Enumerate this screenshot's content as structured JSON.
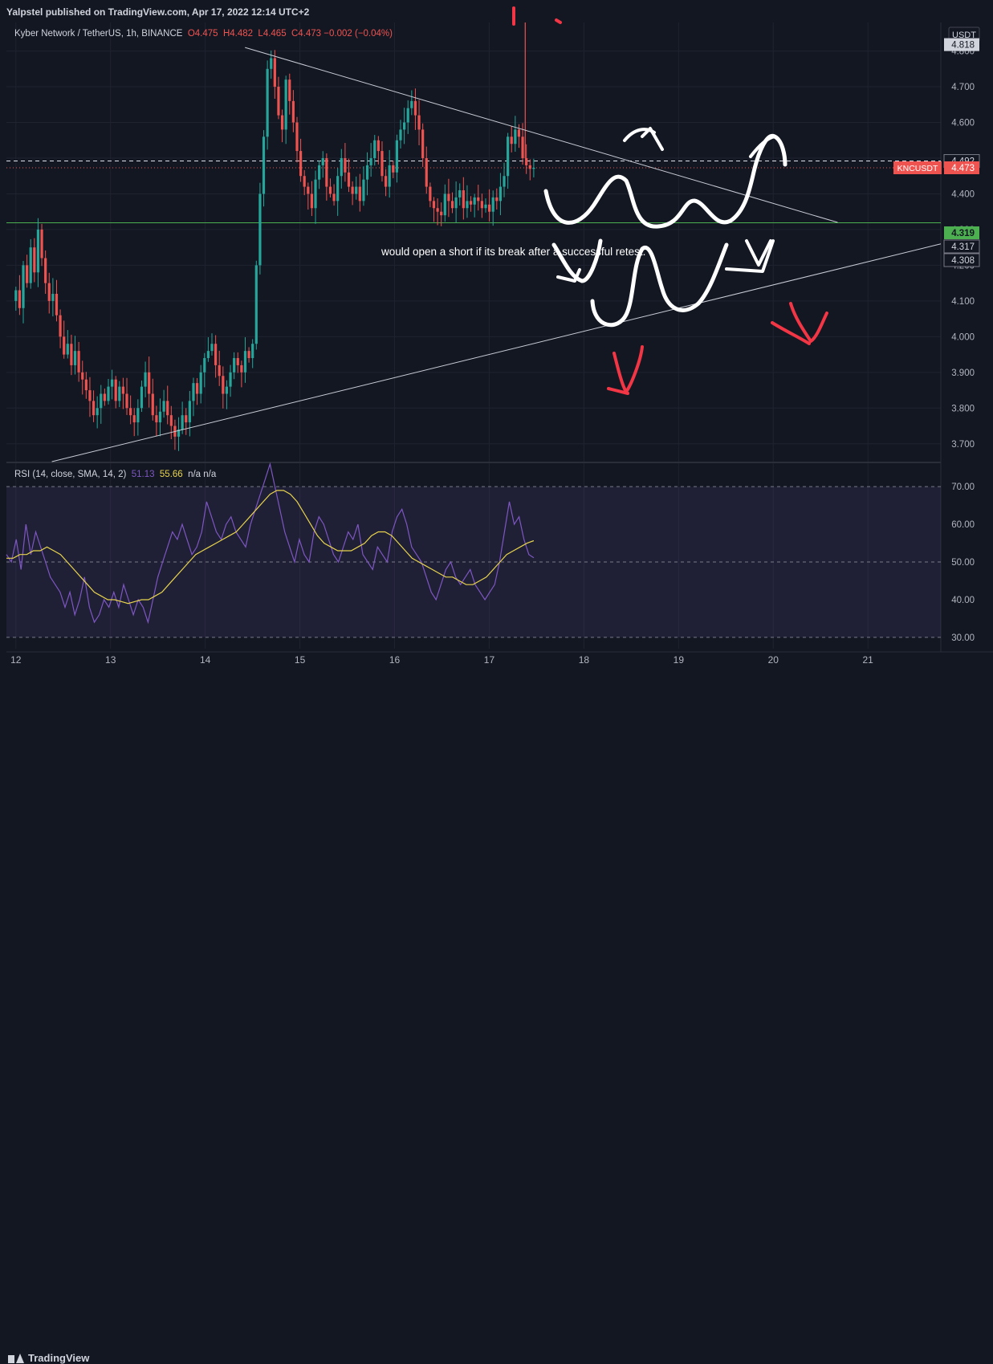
{
  "header": {
    "publisher": "Yalpstel published on TradingView.com, Apr 17, 2022 12:14 UTC+2"
  },
  "legend": {
    "symbol": "Kyber Network / TetherUS, 1h, BINANCE",
    "open": "O4.475",
    "high": "H4.482",
    "low": "L4.465",
    "close": "C4.473",
    "change": "−0.002 (−0.04%)"
  },
  "rsi_legend": {
    "label": "RSI (14, close, SMA, 14, 2)",
    "rsi_value": "51.13",
    "sma_value": "55.66",
    "extra": "n/a  n/a"
  },
  "annotation_text": "would open a short if its break after a successful retest.",
  "footer": {
    "brand": "TradingView"
  },
  "colors": {
    "background": "#131722",
    "up": "#26a69a",
    "down": "#ef5350",
    "rsi": "#7e57c2",
    "rsi_sma": "#e8d44d",
    "support_line": "#4caf50",
    "drawing_white": "#ffffff",
    "drawing_red": "#f23645"
  },
  "chart_data": [
    {
      "type": "candlestick",
      "title": "Kyber Network / TetherUS, 1h, BINANCE",
      "currency_label": "USDT",
      "ylim": [
        3.65,
        4.88
      ],
      "y_ticks": [
        "3.700",
        "3.800",
        "3.900",
        "4.000",
        "4.100",
        "4.200",
        "4.300",
        "4.400",
        "4.500",
        "4.600",
        "4.700",
        "4.800"
      ],
      "x_ticks": [
        "12",
        "13",
        "14",
        "15",
        "16",
        "17",
        "18",
        "19",
        "20",
        "21"
      ],
      "x_range_days": [
        11.9,
        21.77
      ],
      "price_labels": [
        {
          "text": "4.818",
          "value": 4.818,
          "style": "light"
        },
        {
          "text": "4.492",
          "value": 4.492,
          "style": "outline"
        },
        {
          "text": "4.473",
          "value": 4.473,
          "style": "red",
          "tag": "KNCUSDT"
        },
        {
          "text": "4.319",
          "value": 4.319,
          "style": "green"
        },
        {
          "text": "4.317",
          "value": 4.317,
          "style": "outline"
        },
        {
          "text": "4.308",
          "value": 4.308,
          "style": "outline"
        }
      ],
      "horizontal_lines": [
        {
          "value": 4.492,
          "style": "dashed-white"
        },
        {
          "value": 4.473,
          "style": "dotted-red"
        },
        {
          "value": 4.319,
          "style": "solid-green"
        }
      ],
      "trendlines": [
        {
          "from": [
            14.42,
            4.81
          ],
          "to": [
            20.68,
            4.32
          ]
        },
        {
          "from": [
            12.38,
            3.65
          ],
          "to": [
            21.77,
            4.26
          ]
        }
      ],
      "closes": [
        4.13,
        4.08,
        4.2,
        4.15,
        4.25,
        4.18,
        4.3,
        4.22,
        4.15,
        4.1,
        4.12,
        4.06,
        4.0,
        3.95,
        3.98,
        3.92,
        3.96,
        3.9,
        3.88,
        3.85,
        3.82,
        3.78,
        3.8,
        3.84,
        3.82,
        3.86,
        3.88,
        3.82,
        3.86,
        3.84,
        3.8,
        3.78,
        3.76,
        3.8,
        3.86,
        3.9,
        3.84,
        3.78,
        3.76,
        3.79,
        3.82,
        3.78,
        3.75,
        3.72,
        3.74,
        3.78,
        3.76,
        3.82,
        3.87,
        3.84,
        3.9,
        3.94,
        3.96,
        3.98,
        3.92,
        3.89,
        3.84,
        3.86,
        3.9,
        3.94,
        3.92,
        3.9,
        3.96,
        3.94,
        3.98,
        4.2,
        4.4,
        4.56,
        4.75,
        4.78,
        4.7,
        4.62,
        4.58,
        4.72,
        4.66,
        4.6,
        4.52,
        4.45,
        4.42,
        4.4,
        4.36,
        4.44,
        4.48,
        4.5,
        4.42,
        4.4,
        4.38,
        4.45,
        4.5,
        4.46,
        4.42,
        4.4,
        4.42,
        4.38,
        4.44,
        4.48,
        4.5,
        4.55,
        4.52,
        4.45,
        4.42,
        4.48,
        4.46,
        4.55,
        4.58,
        4.6,
        4.64,
        4.66,
        4.62,
        4.58,
        4.5,
        4.42,
        4.38,
        4.36,
        4.35,
        4.34,
        4.4,
        4.38,
        4.36,
        4.39,
        4.41,
        4.36,
        4.38,
        4.37,
        4.39,
        4.38,
        4.36,
        4.37,
        4.35,
        4.39,
        4.38,
        4.42,
        4.45,
        4.56,
        4.54,
        4.58,
        4.56,
        4.5,
        4.48,
        4.47,
        4.473
      ],
      "annotations": [
        {
          "text": "would open a short if its break after a successful retest."
        }
      ]
    },
    {
      "type": "line",
      "title": "RSI (14, close, SMA, 14, 2)",
      "ylim": [
        27,
        76
      ],
      "y_ticks": [
        "30.00",
        "40.00",
        "50.00",
        "60.00",
        "70.00"
      ],
      "bands": [
        30,
        50,
        70
      ],
      "series": [
        {
          "name": "RSI",
          "values": [
            52,
            50,
            56,
            48,
            60,
            52,
            58,
            54,
            50,
            46,
            44,
            42,
            38,
            42,
            36,
            40,
            46,
            38,
            34,
            36,
            40,
            38,
            42,
            38,
            44,
            40,
            36,
            40,
            38,
            34,
            40,
            46,
            50,
            54,
            58,
            56,
            60,
            56,
            52,
            54,
            58,
            66,
            62,
            58,
            56,
            60,
            62,
            58,
            56,
            54,
            60,
            64,
            68,
            72,
            76,
            70,
            64,
            58,
            54,
            50,
            56,
            52,
            50,
            58,
            62,
            60,
            56,
            52,
            50,
            54,
            58,
            56,
            60,
            52,
            50,
            48,
            54,
            52,
            50,
            58,
            62,
            64,
            60,
            54,
            52,
            50,
            46,
            42,
            40,
            44,
            48,
            50,
            46,
            44,
            46,
            48,
            44,
            42,
            40,
            42,
            44,
            50,
            58,
            66,
            60,
            62,
            56,
            52,
            51.13
          ]
        },
        {
          "name": "SMA",
          "values": [
            51,
            51,
            52,
            52,
            53,
            53,
            54,
            53,
            52,
            50,
            48,
            46,
            44,
            42,
            41,
            40,
            40,
            39.5,
            39,
            39.5,
            40,
            40,
            41,
            42,
            44,
            46,
            48,
            50,
            52,
            53,
            54,
            55,
            56,
            57,
            58,
            60,
            62,
            64,
            66,
            68,
            69,
            69,
            68,
            66,
            63,
            60,
            57,
            55,
            54,
            53,
            53,
            53,
            54,
            55,
            57,
            58,
            58,
            57,
            55,
            53,
            51,
            50,
            49,
            48,
            47,
            46,
            46,
            45,
            44,
            44,
            45,
            46,
            48,
            50,
            52,
            53,
            54,
            55,
            55.66
          ]
        }
      ]
    }
  ]
}
